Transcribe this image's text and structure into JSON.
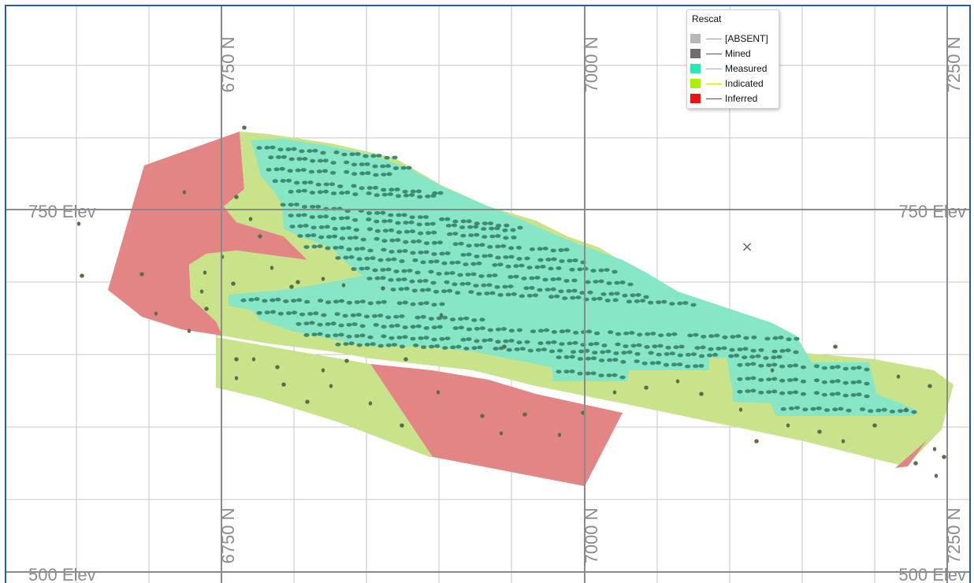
{
  "map": {
    "northing_labels": {
      "n6750": "6750 N",
      "n7000": "7000 N",
      "n7250": "7250 N"
    },
    "elevation_labels": {
      "e750": "750 Elev",
      "e500": "500 Elev"
    },
    "cursor_marker": "×"
  },
  "legend": {
    "title": "Rescat",
    "items": [
      {
        "label": "[ABSENT]",
        "swatch": "#b8b8b8",
        "line": "#9a9a9a"
      },
      {
        "label": "Mined",
        "swatch": "#6e6e6e",
        "line": "#555555"
      },
      {
        "label": "Measured",
        "swatch": "#2ee6b4",
        "line": "#2ee6b4"
      },
      {
        "label": "Indicated",
        "swatch": "#aaf000",
        "line": "#c8e800"
      },
      {
        "label": "Inferred",
        "swatch": "#ee1111",
        "line": "#ee1111"
      }
    ]
  },
  "colors": {
    "inferred_fill": "#e38585",
    "indicated_fill": "#c9e38a",
    "measured_fill": "#86e6c6",
    "drill_measured": "#3e8a74",
    "drill_other": "#5a6e4c",
    "frame": "#2b5c9a"
  }
}
